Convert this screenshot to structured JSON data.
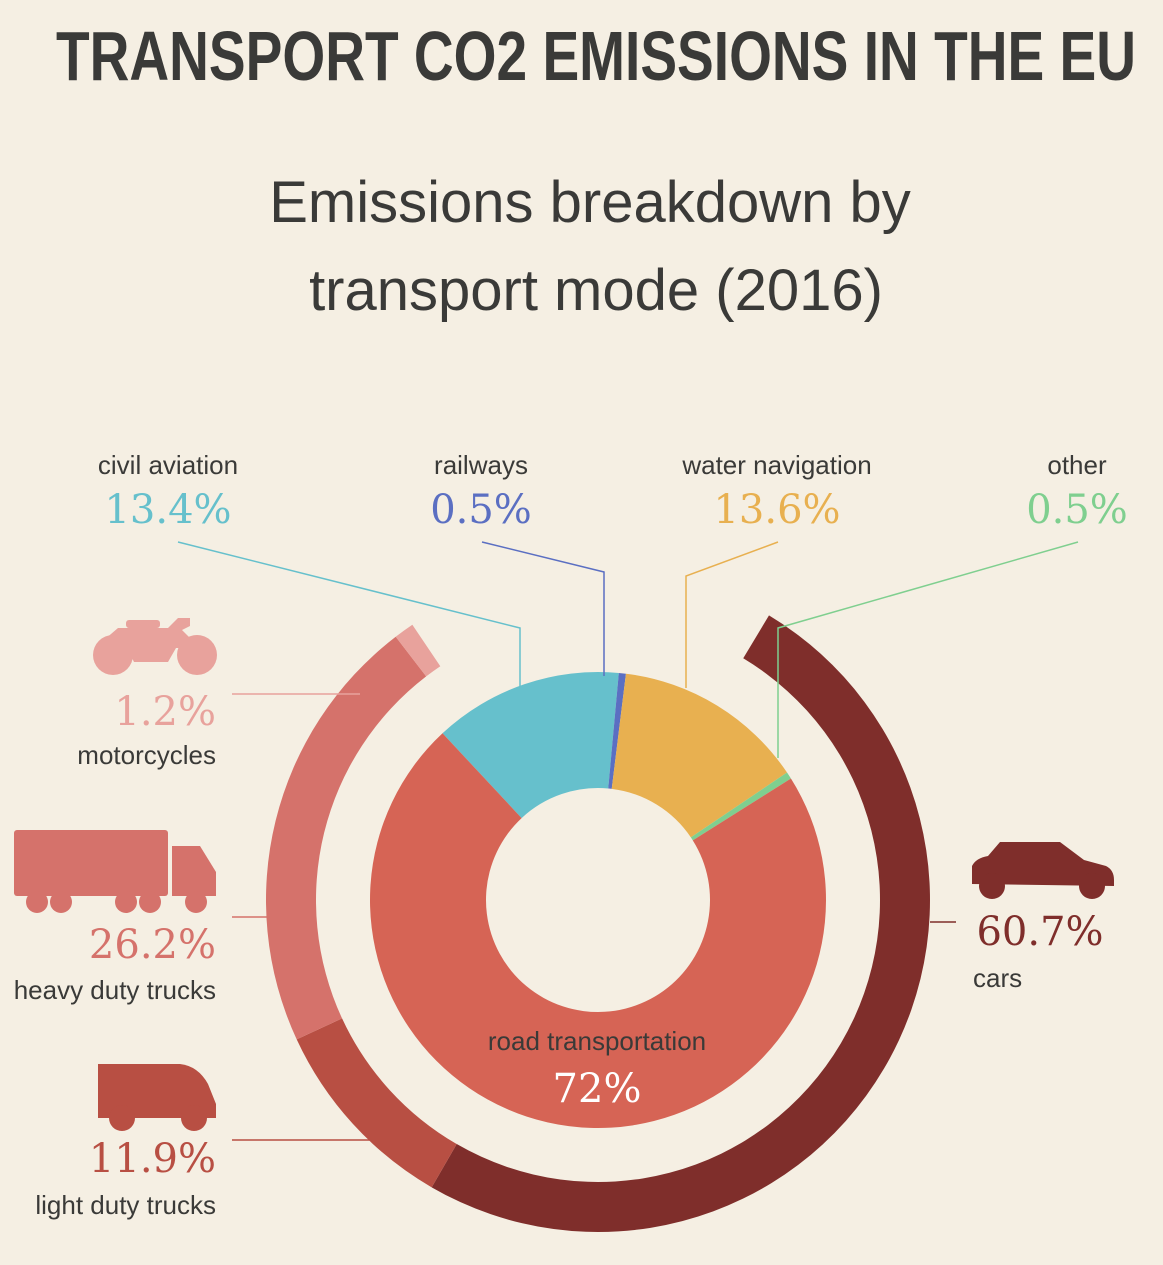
{
  "title": "TRANSPORT CO2 EMISSIONS IN THE EU",
  "subtitle_line1": "Emissions breakdown by",
  "subtitle_line2": "transport mode (2016)",
  "chart_data": [
    {
      "type": "pie",
      "title": "",
      "slices": [
        {
          "label": "civil aviation",
          "value": 13.4,
          "value_label": "13.4%",
          "color": "#66c0cc"
        },
        {
          "label": "railways",
          "value": 0.5,
          "value_label": "0.5%",
          "color": "#5b6fc2"
        },
        {
          "label": "water navigation",
          "value": 13.6,
          "value_label": "13.6%",
          "color": "#e8b050"
        },
        {
          "label": "other",
          "value": 0.5,
          "value_label": "0.5%",
          "color": "#7fcf8f"
        },
        {
          "label": "road transportation",
          "value": 72,
          "value_label": "72%",
          "color": "#d66455"
        }
      ]
    },
    {
      "type": "pie",
      "title": "",
      "slices": [
        {
          "label": "cars",
          "value": 60.7,
          "value_label": "60.7%",
          "color": "#7f2e2b",
          "icon": "car-icon"
        },
        {
          "label": "light duty trucks",
          "value": 11.9,
          "value_label": "11.9%",
          "color": "#b84f43",
          "icon": "van-icon"
        },
        {
          "label": "heavy duty trucks",
          "value": 26.2,
          "value_label": "26.2%",
          "color": "#d5726b",
          "icon": "truck-icon"
        },
        {
          "label": "motorcycles",
          "value": 1.2,
          "value_label": "1.2%",
          "color": "#e8a29c",
          "icon": "motorcycle-icon"
        }
      ]
    }
  ],
  "colors": {
    "background": "#f5efe3",
    "text": "#3a3a38",
    "leader_road": "#e0a79f"
  }
}
